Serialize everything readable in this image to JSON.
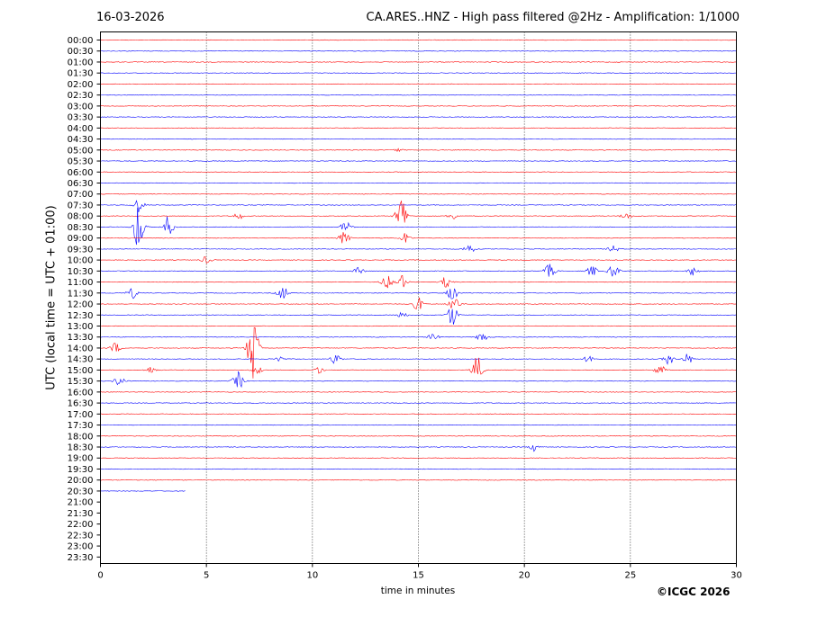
{
  "header": {
    "date": "16-03-2026",
    "title": "CA.ARES..HNZ - High pass filtered @2Hz - Amplification: 1/1000"
  },
  "footer": {
    "copyright": "©ICGC 2026"
  },
  "colors": {
    "trace_a": "#ff0000",
    "trace_b": "#0000ff",
    "axis": "#000000",
    "grid": "#000000"
  },
  "chart_data": {
    "type": "line",
    "xlabel": "time in minutes",
    "ylabel": "UTC (local time = UTC + 01:00)",
    "xlim": [
      0,
      30
    ],
    "x_ticks": [
      0,
      5,
      10,
      15,
      20,
      25,
      30
    ],
    "grid": "vertical dotted lines at each x tick",
    "row_labels": [
      "00:00",
      "00:30",
      "01:00",
      "01:30",
      "02:00",
      "02:30",
      "03:00",
      "03:30",
      "04:00",
      "04:30",
      "05:00",
      "05:30",
      "06:00",
      "06:30",
      "07:00",
      "07:30",
      "08:00",
      "08:30",
      "09:00",
      "09:30",
      "10:00",
      "10:30",
      "11:00",
      "11:30",
      "12:00",
      "12:30",
      "13:00",
      "13:30",
      "14:00",
      "14:30",
      "15:00",
      "15:30",
      "16:00",
      "16:30",
      "17:00",
      "17:30",
      "18:00",
      "18:30",
      "19:00",
      "19:30",
      "20:00",
      "20:30",
      "21:00",
      "21:30",
      "22:00",
      "22:30",
      "23:00",
      "23:30"
    ],
    "recorded_until": {
      "row": "20:30",
      "minute": 4.0
    },
    "events": [
      {
        "row": "05:00",
        "minute": 14.0,
        "level": 0.5
      },
      {
        "row": "07:30",
        "minute": 1.8,
        "level": 2.0
      },
      {
        "row": "08:00",
        "minute": 6.5,
        "level": 1.0
      },
      {
        "row": "08:00",
        "minute": 14.2,
        "level": 6.0
      },
      {
        "row": "08:00",
        "minute": 16.6,
        "level": 1.0
      },
      {
        "row": "08:00",
        "minute": 24.8,
        "level": 1.0
      },
      {
        "row": "08:30",
        "minute": 1.8,
        "level": 7.0
      },
      {
        "row": "08:30",
        "minute": 3.2,
        "level": 3.0
      },
      {
        "row": "08:30",
        "minute": 11.6,
        "level": 2.0
      },
      {
        "row": "09:00",
        "minute": 11.5,
        "level": 2.0
      },
      {
        "row": "09:00",
        "minute": 14.4,
        "level": 1.5
      },
      {
        "row": "09:30",
        "minute": 17.4,
        "level": 1.5
      },
      {
        "row": "09:30",
        "minute": 24.2,
        "level": 1.0
      },
      {
        "row": "10:00",
        "minute": 5.0,
        "level": 1.0
      },
      {
        "row": "10:30",
        "minute": 12.2,
        "level": 1.0
      },
      {
        "row": "10:30",
        "minute": 21.2,
        "level": 2.0
      },
      {
        "row": "10:30",
        "minute": 23.2,
        "level": 1.5
      },
      {
        "row": "10:30",
        "minute": 24.2,
        "level": 2.0
      },
      {
        "row": "10:30",
        "minute": 28.0,
        "level": 1.5
      },
      {
        "row": "11:00",
        "minute": 13.5,
        "level": 2.0
      },
      {
        "row": "11:00",
        "minute": 14.2,
        "level": 2.0
      },
      {
        "row": "11:00",
        "minute": 16.3,
        "level": 1.5
      },
      {
        "row": "11:30",
        "minute": 1.5,
        "level": 1.5
      },
      {
        "row": "11:30",
        "minute": 8.6,
        "level": 2.0
      },
      {
        "row": "11:30",
        "minute": 16.6,
        "level": 2.0
      },
      {
        "row": "12:00",
        "minute": 15.0,
        "level": 2.0
      },
      {
        "row": "12:00",
        "minute": 16.7,
        "level": 2.5
      },
      {
        "row": "12:30",
        "minute": 14.2,
        "level": 1.0
      },
      {
        "row": "12:30",
        "minute": 16.6,
        "level": 3.0
      },
      {
        "row": "13:30",
        "minute": 18.0,
        "level": 1.5
      },
      {
        "row": "13:30",
        "minute": 15.7,
        "level": 1.0
      },
      {
        "row": "14:00",
        "minute": 0.7,
        "level": 1.5
      },
      {
        "row": "14:00",
        "minute": 7.2,
        "level": 10.0
      },
      {
        "row": "14:30",
        "minute": 8.4,
        "level": 1.0
      },
      {
        "row": "14:30",
        "minute": 11.1,
        "level": 1.5
      },
      {
        "row": "14:30",
        "minute": 23.1,
        "level": 1.5
      },
      {
        "row": "14:30",
        "minute": 26.8,
        "level": 1.5
      },
      {
        "row": "14:30",
        "minute": 27.7,
        "level": 1.5
      },
      {
        "row": "15:00",
        "minute": 2.4,
        "level": 1.0
      },
      {
        "row": "15:00",
        "minute": 7.4,
        "level": 1.0
      },
      {
        "row": "15:00",
        "minute": 10.4,
        "level": 1.0
      },
      {
        "row": "15:00",
        "minute": 17.8,
        "level": 4.0
      },
      {
        "row": "15:00",
        "minute": 26.4,
        "level": 1.5
      },
      {
        "row": "15:30",
        "minute": 0.9,
        "level": 1.5
      },
      {
        "row": "15:30",
        "minute": 6.5,
        "level": 2.5
      },
      {
        "row": "18:30",
        "minute": 20.5,
        "level": 1.2
      }
    ]
  }
}
